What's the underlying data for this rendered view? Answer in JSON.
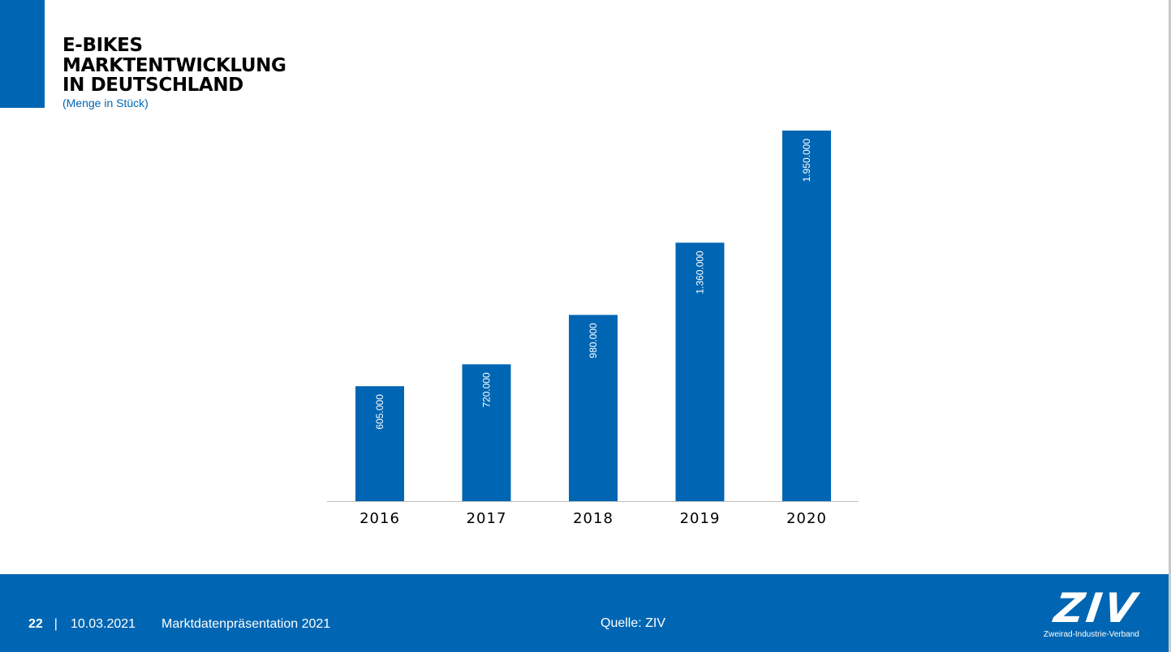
{
  "colors": {
    "brand_blue": "#0066b3",
    "bar": "#0066b3",
    "axis": "#bfbfbf"
  },
  "header": {
    "title_lines": [
      "E-BIKES",
      "MARKTENTWICKLUNG",
      "IN DEUTSCHLAND"
    ],
    "subtitle": "(Menge in Stück)"
  },
  "chart_data": {
    "type": "bar",
    "title": "E-BIKES MARKTENTWICKLUNG IN DEUTSCHLAND",
    "subtitle": "(Menge in Stück)",
    "categories": [
      "2016",
      "2017",
      "2018",
      "2019",
      "2020"
    ],
    "values": [
      605000,
      720000,
      980000,
      1360000,
      1950000
    ],
    "value_labels": [
      "605.000",
      "720.000",
      "980.000",
      "1.360.000",
      "1.950.000"
    ],
    "xlabel": "",
    "ylabel": "",
    "ylim": [
      0,
      1950000
    ],
    "grid": false,
    "legend": "none"
  },
  "footer": {
    "page_number": "22",
    "separator": "|",
    "date": "10.03.2021",
    "presentation": "Marktdatenpräsentation 2021",
    "source": "Quelle: ZIV",
    "logo_text": "ZIV",
    "logo_tagline": "Zweirad-Industrie-Verband"
  }
}
